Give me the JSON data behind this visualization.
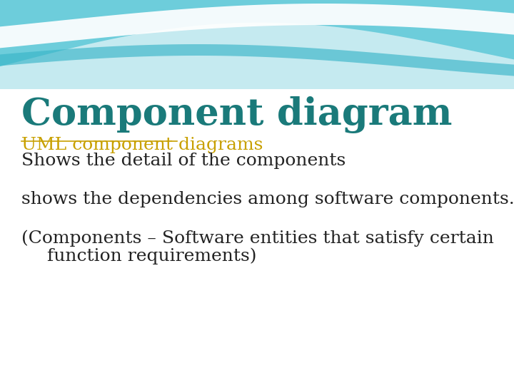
{
  "title": "Component diagram",
  "title_color": "#1a7a7a",
  "title_fontsize": 38,
  "link_text": "UML component diagrams",
  "link_color": "#c8a000",
  "link_fontsize": 18,
  "body_line1": "Shows the detail of the components",
  "body_line2": "shows the dependencies among software components.",
  "body_line3a": "(Components – Software entities that satisfy certain",
  "body_line3b": "  function requirements)",
  "body_color": "#222222",
  "body_fontsize": 18,
  "bg_color": "#ffffff",
  "wave_top_color": "#5ec8d8",
  "wave_light_color": "#c5eaf0",
  "wave_white": "#ffffff",
  "wave_teal2": "#3ab5c8"
}
